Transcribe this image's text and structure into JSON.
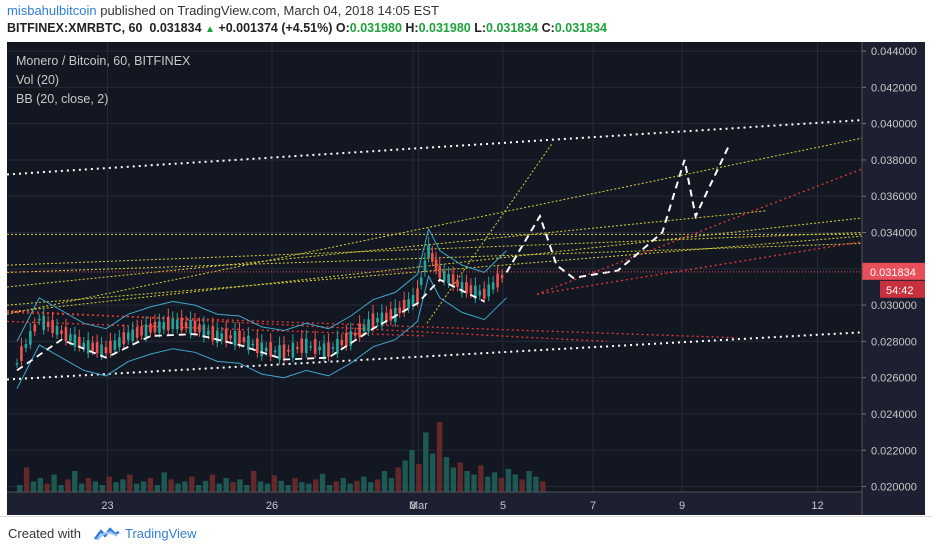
{
  "header": {
    "user": "misbahulbitcoin",
    "published": " published on TradingView.com, March 04, 2018 14:05 EST",
    "symbol": "BITFINEX:XMRBTC, 60",
    "last": "0.031834",
    "change": "+0.001374 (+4.51%)",
    "o_label": "O:",
    "o_value": "0.031980",
    "h_label": "H:",
    "h_value": "0.031980",
    "l_label": "L:",
    "l_value": "0.031834",
    "c_label": "C:",
    "c_value": "0.031834"
  },
  "legend": {
    "title": "Monero / Bitcoin, 60, BITFINEX",
    "vol": "Vol (20)",
    "bb": "BB (20, close, 2)"
  },
  "footer": {
    "created": "Created with",
    "brand": "TradingView"
  },
  "colors": {
    "background": "#131722",
    "up": "#26a69a",
    "down": "#ef5350",
    "bollinger": "#3fa7c9",
    "trend_yellow": "#d7d23a",
    "trend_red": "#e53935",
    "trend_white": "#ffffff",
    "price_tag": "#e94f5a"
  },
  "chart_data": {
    "type": "candlestick",
    "title": "Monero / Bitcoin, 60, BITFINEX",
    "y_ticks": [
      "0.044000",
      "0.042000",
      "0.040000",
      "0.038000",
      "0.036000",
      "0.034000",
      "0.032000",
      "0.030000",
      "0.028000",
      "0.026000",
      "0.024000",
      "0.022000",
      "0.020000"
    ],
    "x_ticks": [
      "23",
      "26",
      "Mar",
      "3",
      "5",
      "7",
      "9",
      "12"
    ],
    "ylim": [
      0.0197,
      0.0445
    ],
    "last_price": "0.031834",
    "countdown": "54:42",
    "price_path": [
      {
        "x": "22 00:00",
        "y": 0.0268
      },
      {
        "x": "22 12:00",
        "y": 0.0292
      },
      {
        "x": "23 00:00",
        "y": 0.0285
      },
      {
        "x": "23 12:00",
        "y": 0.0278
      },
      {
        "x": "24 00:00",
        "y": 0.0275
      },
      {
        "x": "24 12:00",
        "y": 0.0283
      },
      {
        "x": "25 00:00",
        "y": 0.0287
      },
      {
        "x": "25 12:00",
        "y": 0.029
      },
      {
        "x": "26 00:00",
        "y": 0.0288
      },
      {
        "x": "26 12:00",
        "y": 0.0283
      },
      {
        "x": "27 00:00",
        "y": 0.0282
      },
      {
        "x": "27 12:00",
        "y": 0.0276
      },
      {
        "x": "28 00:00",
        "y": 0.0274
      },
      {
        "x": "28 12:00",
        "y": 0.0278
      },
      {
        "x": "Mar 01 00:00",
        "y": 0.0275
      },
      {
        "x": "Mar 01 12:00",
        "y": 0.0282
      },
      {
        "x": "Mar 02 00:00",
        "y": 0.0291
      },
      {
        "x": "Mar 02 12:00",
        "y": 0.0295
      },
      {
        "x": "Mar 03 00:00",
        "y": 0.0305
      },
      {
        "x": "Mar 03 06:00",
        "y": 0.033
      },
      {
        "x": "Mar 03 12:00",
        "y": 0.0318
      },
      {
        "x": "Mar 04 00:00",
        "y": 0.031
      },
      {
        "x": "Mar 04 12:00",
        "y": 0.0306
      },
      {
        "x": "Mar 05 00:00",
        "y": 0.0318
      }
    ],
    "projection": [
      {
        "x": "Mar 05 00:00",
        "y": 0.0318
      },
      {
        "x": "Mar 05 18:00",
        "y": 0.0349
      },
      {
        "x": "Mar 06 03:00",
        "y": 0.0322
      },
      {
        "x": "Mar 06 12:00",
        "y": 0.0315
      },
      {
        "x": "Mar 07 12:00",
        "y": 0.0319
      },
      {
        "x": "Mar 08 12:00",
        "y": 0.034
      },
      {
        "x": "Mar 09 00:00",
        "y": 0.038
      },
      {
        "x": "Mar 09 06:00",
        "y": 0.0349
      },
      {
        "x": "Mar 10 00:00",
        "y": 0.0388
      }
    ],
    "volume_levels": [
      0.1,
      0.35,
      0.15,
      0.2,
      0.12,
      0.25,
      0.1,
      0.18,
      0.3,
      0.12,
      0.2,
      0.15,
      0.1,
      0.22,
      0.14,
      0.18,
      0.25,
      0.12,
      0.15,
      0.2,
      0.1,
      0.28,
      0.18,
      0.12,
      0.15,
      0.22,
      0.1,
      0.16,
      0.25,
      0.12,
      0.2,
      0.14,
      0.18,
      0.1,
      0.3,
      0.15,
      0.12,
      0.24,
      0.16,
      0.1,
      0.2,
      0.14,
      0.12,
      0.18,
      0.26,
      0.1,
      0.15,
      0.2,
      0.12,
      0.16,
      0.22,
      0.14,
      0.18,
      0.3,
      0.2,
      0.35,
      0.45,
      0.6,
      0.4,
      0.85,
      0.55,
      1.0,
      0.5,
      0.35,
      0.42,
      0.3,
      0.25,
      0.38,
      0.22,
      0.28,
      0.2,
      0.33,
      0.25,
      0.18,
      0.3,
      0.22,
      0.15
    ]
  }
}
